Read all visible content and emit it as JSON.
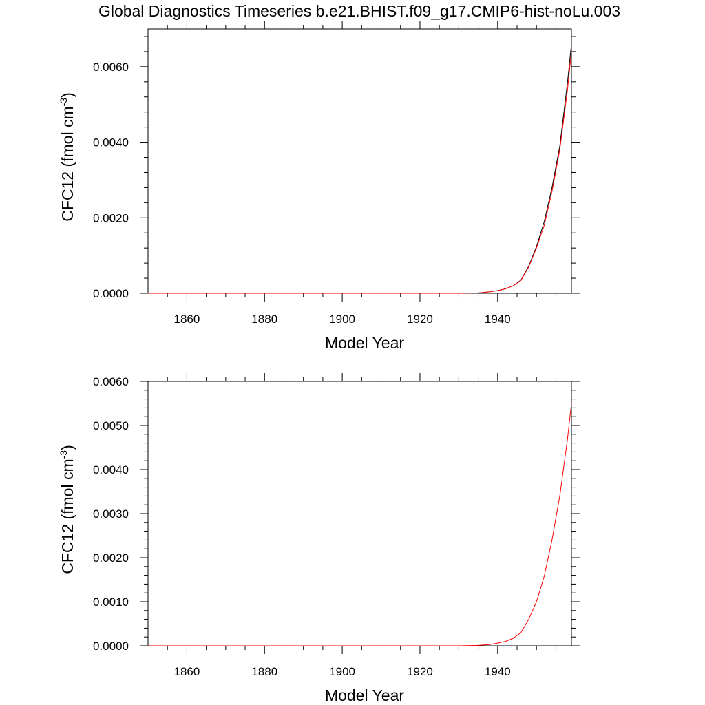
{
  "figure": {
    "title": "Global Diagnostics Timeseries b.e21.BHIST.f09_g17.CMIP6-hist-noLu.003"
  },
  "chart_data": [
    {
      "type": "line",
      "title": "Global Diagnostics Timeseries b.e21.BHIST.f09_g17.CMIP6-hist-noLu.003",
      "xlabel": "Model Year",
      "ylabel": "CFC12 (fmol cm",
      "ylabel_sup": "-3",
      "ylabel_close": ")",
      "xlim": [
        1850,
        1959
      ],
      "ylim": [
        0,
        0.007
      ],
      "grid": false,
      "x_ticks": [
        1860,
        1880,
        1900,
        1920,
        1940
      ],
      "x_tick_labels": [
        "1860",
        "1880",
        "1900",
        "1920",
        "1940"
      ],
      "y_ticks": [
        0,
        0.002,
        0.004,
        0.006
      ],
      "y_tick_labels": [
        "0.0000",
        "0.0020",
        "0.0040",
        "0.0060"
      ],
      "series": [
        {
          "color": "#000000",
          "x": [
            1850,
            1900,
            1930,
            1935,
            1938,
            1940,
            1942,
            1944,
            1946,
            1948,
            1950,
            1952,
            1954,
            1956,
            1958,
            1959
          ],
          "values": [
            0.0,
            0.0,
            0.0,
            1e-05,
            4e-05,
            7e-05,
            0.00012,
            0.0002,
            0.00035,
            0.00072,
            0.00124,
            0.0019,
            0.0028,
            0.0039,
            0.0056,
            0.0066
          ]
        },
        {
          "color": "#ff0000",
          "x": [
            1850,
            1900,
            1930,
            1935,
            1938,
            1940,
            1942,
            1944,
            1946,
            1948,
            1950,
            1952,
            1954,
            1956,
            1958,
            1959
          ],
          "values": [
            0.0,
            0.0,
            0.0,
            1e-05,
            4e-05,
            7e-05,
            0.00012,
            0.0002,
            0.00034,
            0.0007,
            0.0012,
            0.0018,
            0.0027,
            0.0038,
            0.0054,
            0.0064
          ]
        }
      ]
    },
    {
      "type": "line",
      "title": "",
      "xlabel": "Model Year",
      "ylabel": "CFC12 (fmol cm",
      "ylabel_sup": "-3",
      "ylabel_close": ")",
      "xlim": [
        1850,
        1959
      ],
      "ylim": [
        0,
        0.006
      ],
      "grid": false,
      "x_ticks": [
        1860,
        1880,
        1900,
        1920,
        1940
      ],
      "x_tick_labels": [
        "1860",
        "1880",
        "1900",
        "1920",
        "1940"
      ],
      "y_ticks": [
        0,
        0.001,
        0.002,
        0.003,
        0.004,
        0.005,
        0.006
      ],
      "y_tick_labels": [
        "0.0000",
        "0.0010",
        "0.0020",
        "0.0030",
        "0.0040",
        "0.0050",
        "0.0060"
      ],
      "series": [
        {
          "color": "#ff0000",
          "x": [
            1850,
            1900,
            1930,
            1935,
            1938,
            1940,
            1942,
            1944,
            1946,
            1948,
            1950,
            1952,
            1954,
            1956,
            1958,
            1959
          ],
          "values": [
            0.0,
            0.0,
            0.0,
            1e-05,
            3e-05,
            6e-05,
            0.0001,
            0.00017,
            0.0003,
            0.0006,
            0.001,
            0.00158,
            0.0024,
            0.0034,
            0.0047,
            0.0055
          ]
        }
      ]
    }
  ]
}
